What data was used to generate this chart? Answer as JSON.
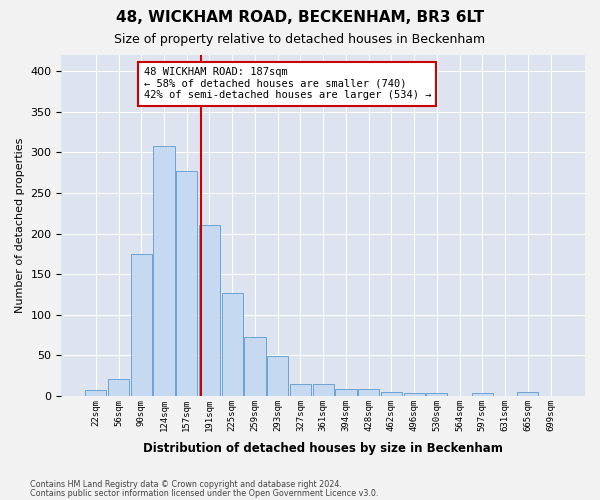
{
  "title": "48, WICKHAM ROAD, BECKENHAM, BR3 6LT",
  "subtitle": "Size of property relative to detached houses in Beckenham",
  "xlabel": "Distribution of detached houses by size in Beckenham",
  "ylabel": "Number of detached properties",
  "bar_color": "#c5d9f0",
  "bar_edge_color": "#6aa3d5",
  "background_color": "#dde4ef",
  "grid_color": "#ffffff",
  "categories": [
    "22sqm",
    "56sqm",
    "90sqm",
    "124sqm",
    "157sqm",
    "191sqm",
    "225sqm",
    "259sqm",
    "293sqm",
    "327sqm",
    "361sqm",
    "394sqm",
    "428sqm",
    "462sqm",
    "496sqm",
    "530sqm",
    "564sqm",
    "597sqm",
    "631sqm",
    "665sqm",
    "699sqm"
  ],
  "values": [
    7,
    21,
    175,
    308,
    277,
    210,
    127,
    72,
    49,
    15,
    14,
    9,
    8,
    5,
    3,
    3,
    0,
    4,
    0,
    5,
    0
  ],
  "ylim": [
    0,
    420
  ],
  "yticks": [
    0,
    50,
    100,
    150,
    200,
    250,
    300,
    350,
    400
  ],
  "property_line_x": 4.64,
  "annotation_text": "48 WICKHAM ROAD: 187sqm\n← 58% of detached houses are smaller (740)\n42% of semi-detached houses are larger (534) →",
  "annotation_box_color": "#ffffff",
  "annotation_box_edge": "#cc0000",
  "annotation_line_color": "#cc0000",
  "footer1": "Contains HM Land Registry data © Crown copyright and database right 2024.",
  "footer2": "Contains public sector information licensed under the Open Government Licence v3.0."
}
